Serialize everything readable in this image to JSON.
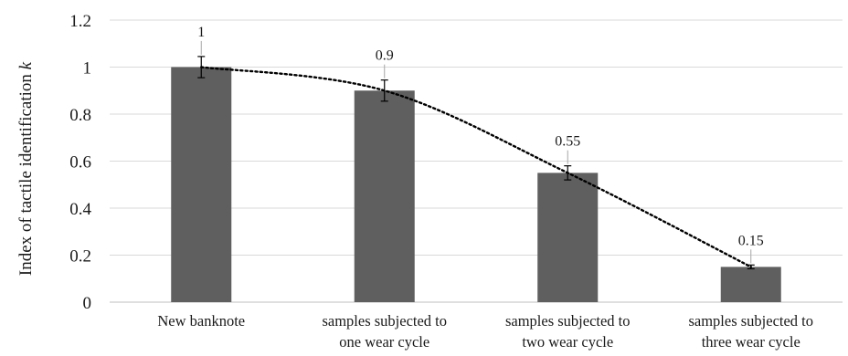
{
  "chart_data": {
    "type": "bar",
    "title": "",
    "xlabel": "",
    "ylabel_main": "Index of tactile identification ",
    "ylabel_var": "k",
    "ylim": [
      0,
      1.2
    ],
    "yticks": [
      "0",
      "0.2",
      "0.4",
      "0.6",
      "0.8",
      "1",
      "1.2"
    ],
    "grid": true,
    "categories": [
      [
        "New banknote"
      ],
      [
        "samples subjected to",
        "one wear cycle"
      ],
      [
        "samples subjected to",
        "two wear cycle"
      ],
      [
        "samples subjected to",
        "three wear cycle"
      ]
    ],
    "values": [
      1,
      0.9,
      0.55,
      0.15
    ],
    "data_labels": [
      "1",
      "0.9",
      "0.55",
      "0.15"
    ],
    "error": [
      0.045,
      0.045,
      0.03,
      0.008
    ],
    "trendline": "dotted",
    "colors": {
      "bar": "#5f5f5f",
      "grid": "#d9d9d9",
      "trend": "#000000"
    }
  }
}
